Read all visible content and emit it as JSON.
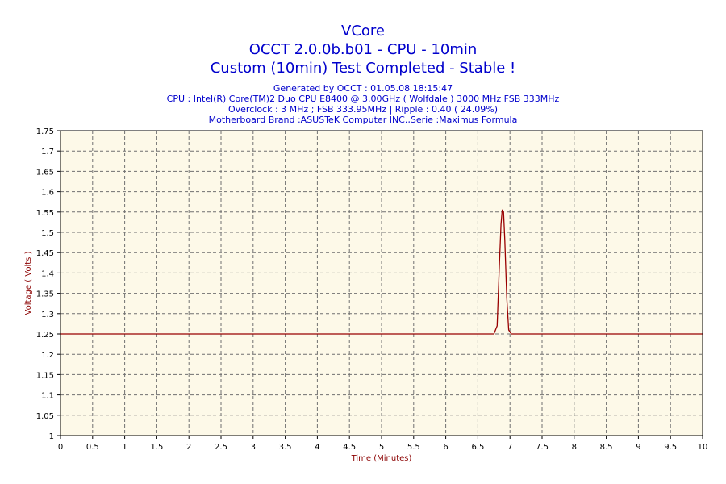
{
  "chart_data": {
    "type": "line",
    "title": "VCore",
    "subtitle_lines": [
      "OCCT 2.0.0b.b01 - CPU - 10min",
      "Custom (10min) Test Completed - Stable !"
    ],
    "info_lines": [
      "Generated by OCCT : 01.05.08 18:15:47",
      "CPU : Intel(R) Core(TM)2 Duo CPU E8400 @ 3.00GHz ( Wolfdale ) 3000 MHz FSB 333MHz",
      "Overclock : 3 MHz ; FSB 333.95MHz | Ripple : 0.40 ( 24.09%)",
      "Motherboard Brand :ASUSTeK Computer INC.,Serie :Maximus Formula"
    ],
    "xlabel": "Time (Minutes)",
    "ylabel": "Voltage ( Volts )",
    "xlim": [
      0,
      10
    ],
    "ylim": [
      1,
      1.75
    ],
    "x_ticks": [
      "0",
      "0.5",
      "1",
      "1.5",
      "2",
      "2.5",
      "3",
      "3.5",
      "4",
      "4.5",
      "5",
      "5.5",
      "6",
      "6.5",
      "7",
      "7.5",
      "8",
      "8.5",
      "9",
      "9.5",
      "10"
    ],
    "y_ticks": [
      "1",
      "1.05",
      "1.1",
      "1.15",
      "1.2",
      "1.25",
      "1.3",
      "1.35",
      "1.4",
      "1.45",
      "1.5",
      "1.55",
      "1.6",
      "1.65",
      "1.7",
      "1.75"
    ],
    "grid": true,
    "series": [
      {
        "color": "#990000",
        "x": [
          0,
          6.5,
          6.75,
          6.8,
          6.83,
          6.86,
          6.88,
          6.9,
          6.92,
          6.95,
          6.98,
          7.02,
          7.1,
          10
        ],
        "y": [
          1.25,
          1.25,
          1.25,
          1.27,
          1.4,
          1.52,
          1.555,
          1.55,
          1.48,
          1.34,
          1.26,
          1.25,
          1.25,
          1.25
        ]
      }
    ],
    "colors": {
      "plot_background": "#fdf9e8",
      "grid": "#707070",
      "title": "#0000cc",
      "axis_label": "#8b0000"
    }
  }
}
